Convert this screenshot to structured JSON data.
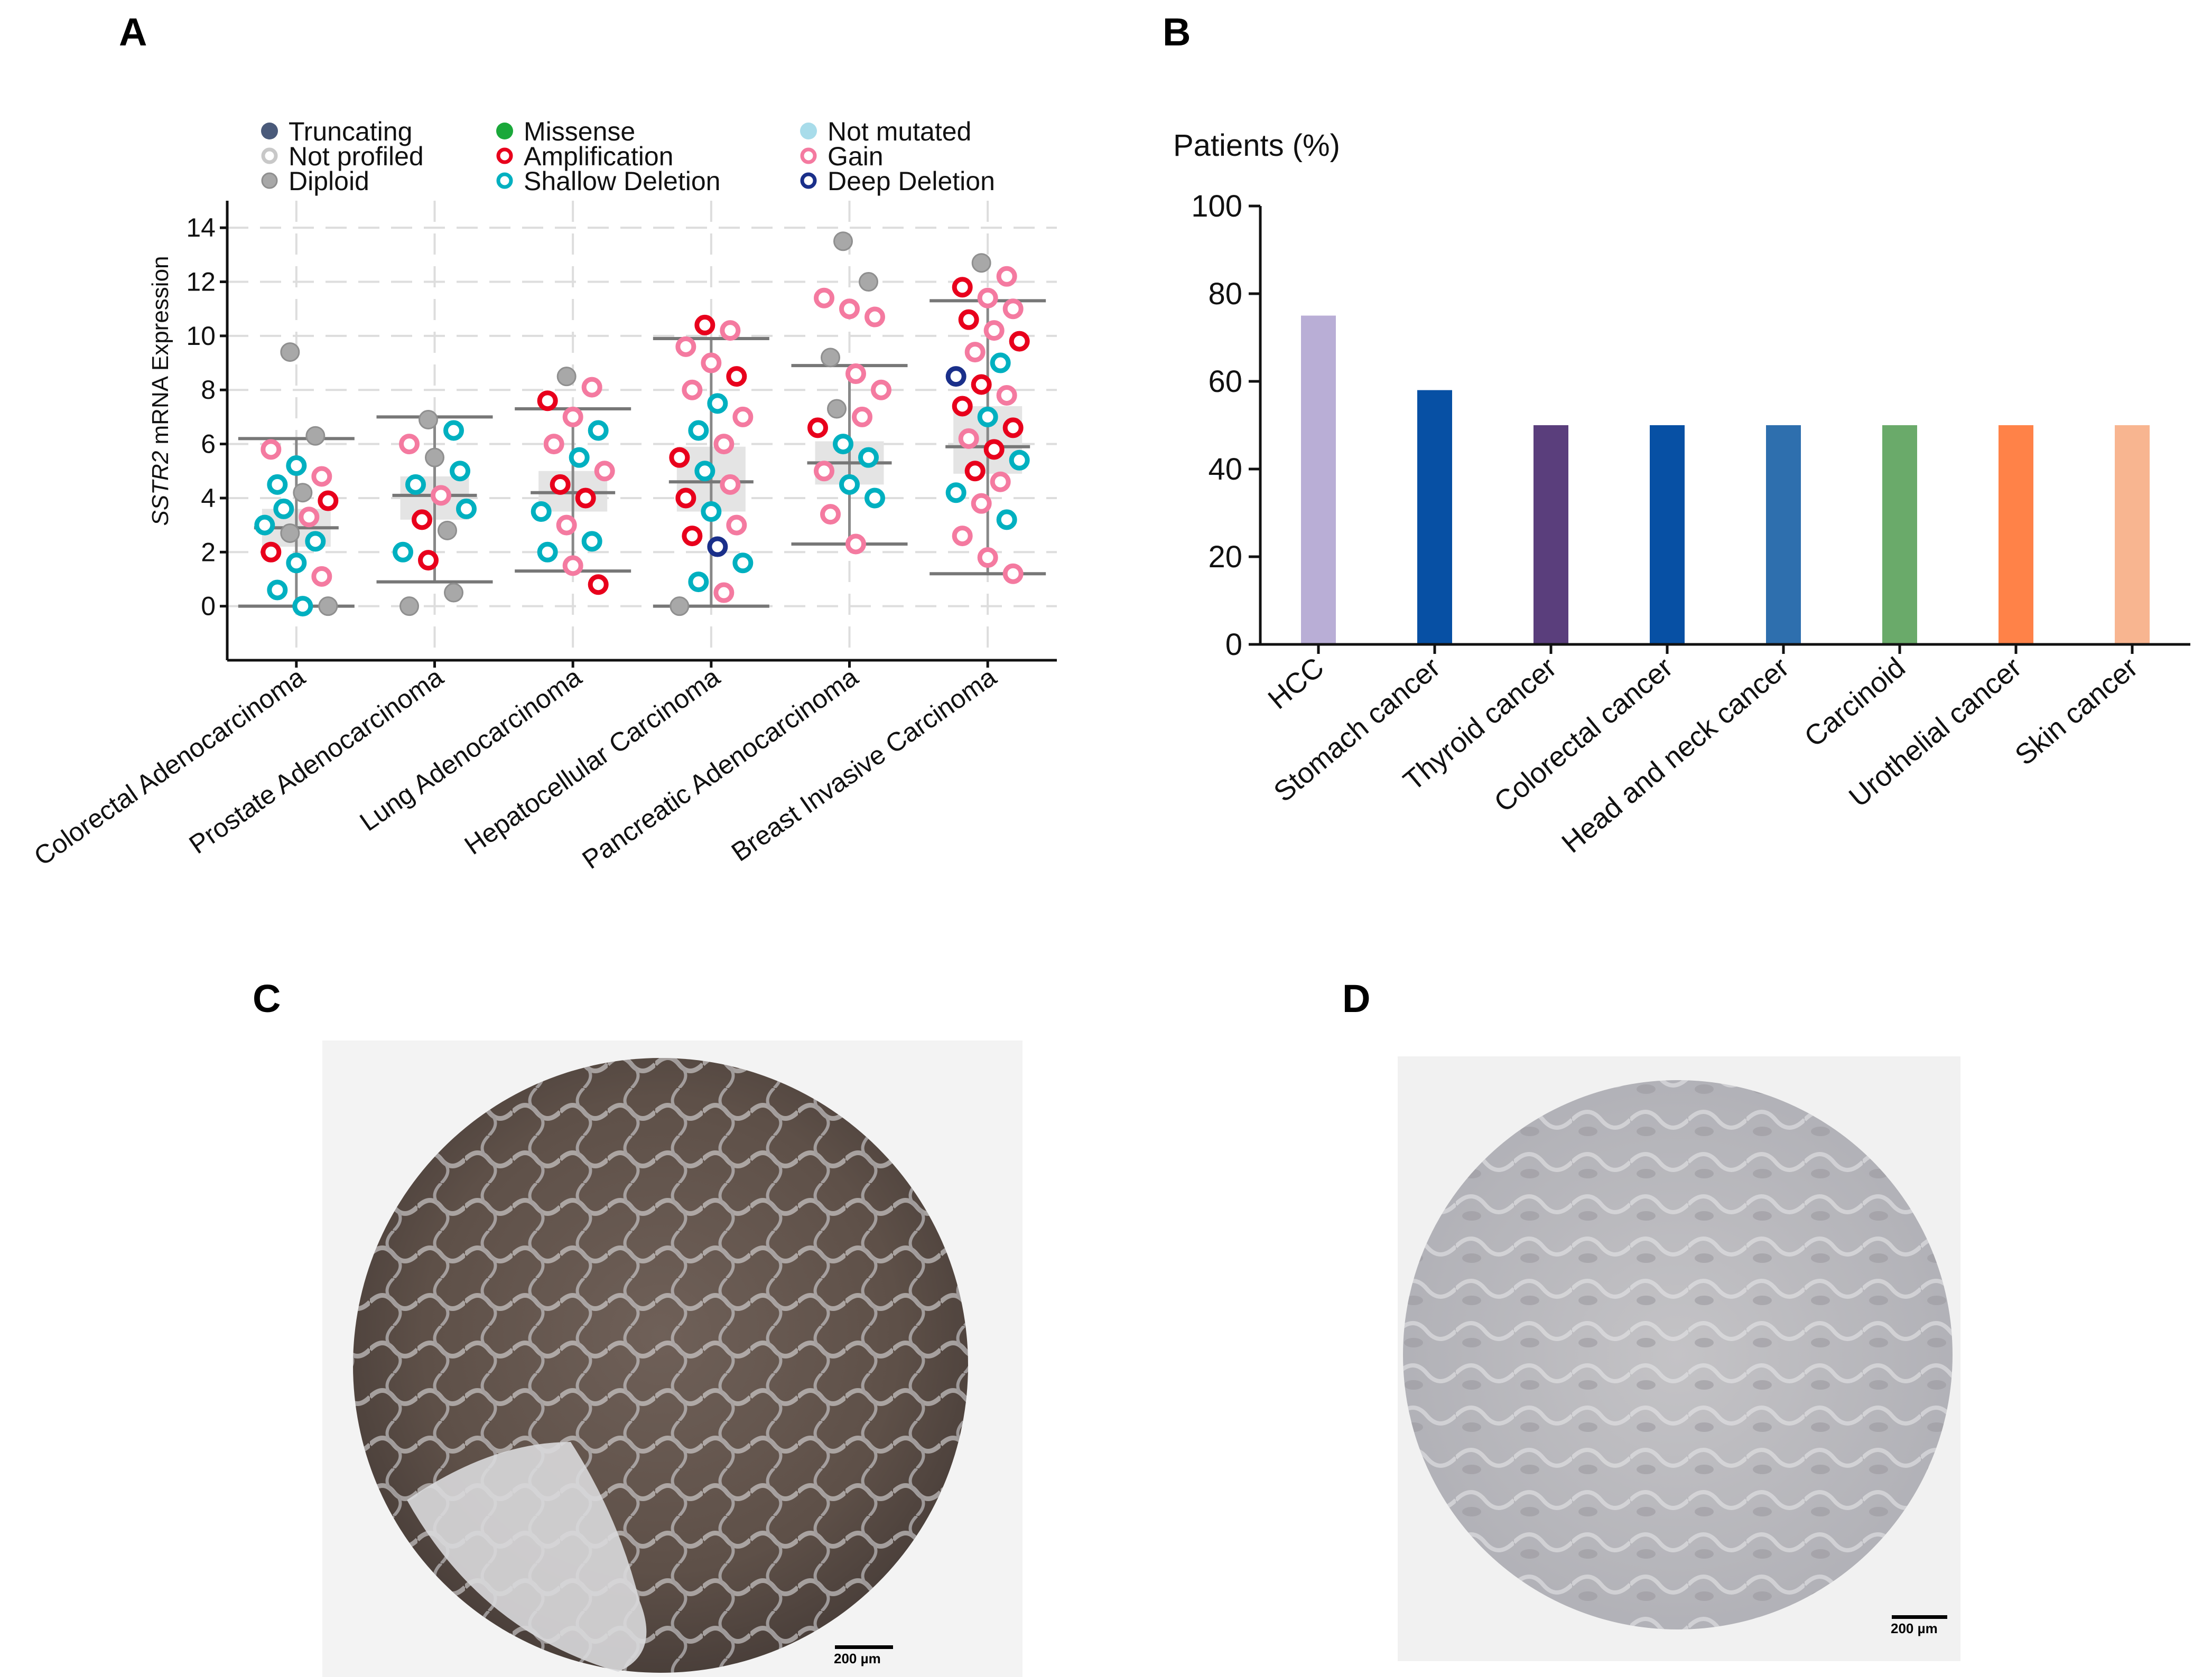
{
  "panel_labels": {
    "a": "A",
    "b": "B",
    "c": "C",
    "d": "D"
  },
  "chart_data": [
    {
      "type": "scatter",
      "panel": "A",
      "title": "",
      "xlabel": "",
      "ylabel_italic": "SSTR2",
      "ylabel_rest": " mRNA Expression",
      "ylim": [
        -2,
        15
      ],
      "yticks": [
        0,
        2,
        4,
        6,
        8,
        10,
        12,
        14
      ],
      "grid": true,
      "legend": [
        {
          "label": "Truncating",
          "color": "#4a5a7a",
          "style": "filled"
        },
        {
          "label": "Not profiled",
          "color": "#c8c8c8",
          "style": "ring"
        },
        {
          "label": "Diploid",
          "color": "#a8a8a8",
          "style": "filled-ring"
        },
        {
          "label": "Missense",
          "color": "#1aa83a",
          "style": "filled"
        },
        {
          "label": "Amplification",
          "color": "#e8001c",
          "style": "ring"
        },
        {
          "label": "Shallow Deletion",
          "color": "#00b0c0",
          "style": "ring"
        },
        {
          "label": "Not mutated",
          "color": "#a8dcea",
          "style": "filled"
        },
        {
          "label": "Gain",
          "color": "#f47aa0",
          "style": "ring"
        },
        {
          "label": "Deep Deletion",
          "color": "#1a2f8a",
          "style": "ring"
        }
      ],
      "categories": [
        "Colorectal Adenocarcinoma",
        "Prostate Adenocarcinoma",
        "Lung Adenocarcinoma",
        "Hepatocellular Carcinoma",
        "Pancreatic Adenocarcinoma",
        "Breast Invasive Carcinoma"
      ],
      "boxes": [
        {
          "min": 0.0,
          "q1": 2.2,
          "median": 2.9,
          "q3": 3.6,
          "max": 6.2
        },
        {
          "min": 0.9,
          "q1": 3.2,
          "median": 4.1,
          "q3": 4.8,
          "max": 7.0
        },
        {
          "min": 1.3,
          "q1": 3.5,
          "median": 4.2,
          "q3": 5.0,
          "max": 7.3
        },
        {
          "min": 0.0,
          "q1": 3.5,
          "median": 4.6,
          "q3": 5.9,
          "max": 9.9
        },
        {
          "min": 2.3,
          "q1": 4.5,
          "median": 5.3,
          "q3": 6.1,
          "max": 8.9
        },
        {
          "min": 1.2,
          "q1": 4.9,
          "median": 5.9,
          "q3": 7.4,
          "max": 11.3
        }
      ],
      "points": [
        {
          "cat": 0,
          "y": 9.4,
          "type": "Diploid"
        },
        {
          "cat": 0,
          "y": 6.3,
          "type": "Diploid"
        },
        {
          "cat": 0,
          "y": 5.8,
          "type": "Gain"
        },
        {
          "cat": 0,
          "y": 5.2,
          "type": "Shallow Deletion"
        },
        {
          "cat": 0,
          "y": 4.8,
          "type": "Gain"
        },
        {
          "cat": 0,
          "y": 4.5,
          "type": "Shallow Deletion"
        },
        {
          "cat": 0,
          "y": 4.2,
          "type": "Diploid"
        },
        {
          "cat": 0,
          "y": 3.9,
          "type": "Amplification"
        },
        {
          "cat": 0,
          "y": 3.6,
          "type": "Shallow Deletion"
        },
        {
          "cat": 0,
          "y": 3.3,
          "type": "Gain"
        },
        {
          "cat": 0,
          "y": 3.0,
          "type": "Shallow Deletion"
        },
        {
          "cat": 0,
          "y": 2.7,
          "type": "Diploid"
        },
        {
          "cat": 0,
          "y": 2.4,
          "type": "Shallow Deletion"
        },
        {
          "cat": 0,
          "y": 2.0,
          "type": "Amplification"
        },
        {
          "cat": 0,
          "y": 1.6,
          "type": "Shallow Deletion"
        },
        {
          "cat": 0,
          "y": 1.1,
          "type": "Gain"
        },
        {
          "cat": 0,
          "y": 0.6,
          "type": "Shallow Deletion"
        },
        {
          "cat": 0,
          "y": 0.0,
          "type": "Shallow Deletion"
        },
        {
          "cat": 0,
          "y": 0.0,
          "type": "Diploid"
        },
        {
          "cat": 1,
          "y": 6.9,
          "type": "Diploid"
        },
        {
          "cat": 1,
          "y": 6.5,
          "type": "Shallow Deletion"
        },
        {
          "cat": 1,
          "y": 6.0,
          "type": "Gain"
        },
        {
          "cat": 1,
          "y": 5.5,
          "type": "Diploid"
        },
        {
          "cat": 1,
          "y": 5.0,
          "type": "Shallow Deletion"
        },
        {
          "cat": 1,
          "y": 4.5,
          "type": "Shallow Deletion"
        },
        {
          "cat": 1,
          "y": 4.1,
          "type": "Gain"
        },
        {
          "cat": 1,
          "y": 3.6,
          "type": "Shallow Deletion"
        },
        {
          "cat": 1,
          "y": 3.2,
          "type": "Amplification"
        },
        {
          "cat": 1,
          "y": 2.8,
          "type": "Diploid"
        },
        {
          "cat": 1,
          "y": 2.0,
          "type": "Shallow Deletion"
        },
        {
          "cat": 1,
          "y": 1.7,
          "type": "Amplification"
        },
        {
          "cat": 1,
          "y": 0.5,
          "type": "Diploid"
        },
        {
          "cat": 1,
          "y": 0.0,
          "type": "Diploid"
        },
        {
          "cat": 2,
          "y": 8.5,
          "type": "Diploid"
        },
        {
          "cat": 2,
          "y": 8.1,
          "type": "Gain"
        },
        {
          "cat": 2,
          "y": 7.6,
          "type": "Amplification"
        },
        {
          "cat": 2,
          "y": 7.0,
          "type": "Gain"
        },
        {
          "cat": 2,
          "y": 6.5,
          "type": "Shallow Deletion"
        },
        {
          "cat": 2,
          "y": 6.0,
          "type": "Gain"
        },
        {
          "cat": 2,
          "y": 5.5,
          "type": "Shallow Deletion"
        },
        {
          "cat": 2,
          "y": 5.0,
          "type": "Gain"
        },
        {
          "cat": 2,
          "y": 4.5,
          "type": "Amplification"
        },
        {
          "cat": 2,
          "y": 4.0,
          "type": "Amplification"
        },
        {
          "cat": 2,
          "y": 3.5,
          "type": "Shallow Deletion"
        },
        {
          "cat": 2,
          "y": 3.0,
          "type": "Gain"
        },
        {
          "cat": 2,
          "y": 2.4,
          "type": "Shallow Deletion"
        },
        {
          "cat": 2,
          "y": 2.0,
          "type": "Shallow Deletion"
        },
        {
          "cat": 2,
          "y": 1.5,
          "type": "Gain"
        },
        {
          "cat": 2,
          "y": 0.8,
          "type": "Amplification"
        },
        {
          "cat": 3,
          "y": 10.4,
          "type": "Amplification"
        },
        {
          "cat": 3,
          "y": 10.2,
          "type": "Gain"
        },
        {
          "cat": 3,
          "y": 9.6,
          "type": "Gain"
        },
        {
          "cat": 3,
          "y": 9.0,
          "type": "Gain"
        },
        {
          "cat": 3,
          "y": 8.5,
          "type": "Amplification"
        },
        {
          "cat": 3,
          "y": 8.0,
          "type": "Gain"
        },
        {
          "cat": 3,
          "y": 7.5,
          "type": "Shallow Deletion"
        },
        {
          "cat": 3,
          "y": 7.0,
          "type": "Gain"
        },
        {
          "cat": 3,
          "y": 6.5,
          "type": "Shallow Deletion"
        },
        {
          "cat": 3,
          "y": 6.0,
          "type": "Gain"
        },
        {
          "cat": 3,
          "y": 5.5,
          "type": "Amplification"
        },
        {
          "cat": 3,
          "y": 5.0,
          "type": "Shallow Deletion"
        },
        {
          "cat": 3,
          "y": 4.5,
          "type": "Gain"
        },
        {
          "cat": 3,
          "y": 4.0,
          "type": "Amplification"
        },
        {
          "cat": 3,
          "y": 3.5,
          "type": "Shallow Deletion"
        },
        {
          "cat": 3,
          "y": 3.0,
          "type": "Gain"
        },
        {
          "cat": 3,
          "y": 2.6,
          "type": "Amplification"
        },
        {
          "cat": 3,
          "y": 2.2,
          "type": "Deep Deletion"
        },
        {
          "cat": 3,
          "y": 1.6,
          "type": "Shallow Deletion"
        },
        {
          "cat": 3,
          "y": 0.9,
          "type": "Shallow Deletion"
        },
        {
          "cat": 3,
          "y": 0.5,
          "type": "Gain"
        },
        {
          "cat": 3,
          "y": 0.0,
          "type": "Diploid"
        },
        {
          "cat": 4,
          "y": 13.5,
          "type": "Diploid"
        },
        {
          "cat": 4,
          "y": 12.0,
          "type": "Diploid"
        },
        {
          "cat": 4,
          "y": 11.4,
          "type": "Gain"
        },
        {
          "cat": 4,
          "y": 11.0,
          "type": "Gain"
        },
        {
          "cat": 4,
          "y": 10.7,
          "type": "Gain"
        },
        {
          "cat": 4,
          "y": 9.2,
          "type": "Diploid"
        },
        {
          "cat": 4,
          "y": 8.6,
          "type": "Gain"
        },
        {
          "cat": 4,
          "y": 8.0,
          "type": "Gain"
        },
        {
          "cat": 4,
          "y": 7.3,
          "type": "Diploid"
        },
        {
          "cat": 4,
          "y": 7.0,
          "type": "Gain"
        },
        {
          "cat": 4,
          "y": 6.6,
          "type": "Amplification"
        },
        {
          "cat": 4,
          "y": 6.0,
          "type": "Shallow Deletion"
        },
        {
          "cat": 4,
          "y": 5.5,
          "type": "Shallow Deletion"
        },
        {
          "cat": 4,
          "y": 5.0,
          "type": "Gain"
        },
        {
          "cat": 4,
          "y": 4.5,
          "type": "Shallow Deletion"
        },
        {
          "cat": 4,
          "y": 4.0,
          "type": "Shallow Deletion"
        },
        {
          "cat": 4,
          "y": 3.4,
          "type": "Gain"
        },
        {
          "cat": 4,
          "y": 2.3,
          "type": "Gain"
        },
        {
          "cat": 5,
          "y": 12.7,
          "type": "Diploid"
        },
        {
          "cat": 5,
          "y": 12.2,
          "type": "Gain"
        },
        {
          "cat": 5,
          "y": 11.8,
          "type": "Amplification"
        },
        {
          "cat": 5,
          "y": 11.4,
          "type": "Gain"
        },
        {
          "cat": 5,
          "y": 11.0,
          "type": "Gain"
        },
        {
          "cat": 5,
          "y": 10.6,
          "type": "Amplification"
        },
        {
          "cat": 5,
          "y": 10.2,
          "type": "Gain"
        },
        {
          "cat": 5,
          "y": 9.8,
          "type": "Amplification"
        },
        {
          "cat": 5,
          "y": 9.4,
          "type": "Gain"
        },
        {
          "cat": 5,
          "y": 9.0,
          "type": "Shallow Deletion"
        },
        {
          "cat": 5,
          "y": 8.5,
          "type": "Deep Deletion"
        },
        {
          "cat": 5,
          "y": 8.2,
          "type": "Amplification"
        },
        {
          "cat": 5,
          "y": 7.8,
          "type": "Gain"
        },
        {
          "cat": 5,
          "y": 7.4,
          "type": "Amplification"
        },
        {
          "cat": 5,
          "y": 7.0,
          "type": "Shallow Deletion"
        },
        {
          "cat": 5,
          "y": 6.6,
          "type": "Amplification"
        },
        {
          "cat": 5,
          "y": 6.2,
          "type": "Gain"
        },
        {
          "cat": 5,
          "y": 5.8,
          "type": "Amplification"
        },
        {
          "cat": 5,
          "y": 5.4,
          "type": "Shallow Deletion"
        },
        {
          "cat": 5,
          "y": 5.0,
          "type": "Amplification"
        },
        {
          "cat": 5,
          "y": 4.6,
          "type": "Gain"
        },
        {
          "cat": 5,
          "y": 4.2,
          "type": "Shallow Deletion"
        },
        {
          "cat": 5,
          "y": 3.8,
          "type": "Gain"
        },
        {
          "cat": 5,
          "y": 3.2,
          "type": "Shallow Deletion"
        },
        {
          "cat": 5,
          "y": 2.6,
          "type": "Gain"
        },
        {
          "cat": 5,
          "y": 1.8,
          "type": "Gain"
        },
        {
          "cat": 5,
          "y": 1.2,
          "type": "Gain"
        }
      ]
    },
    {
      "type": "bar",
      "panel": "B",
      "title": "Patients (%)",
      "xlabel": "",
      "ylabel": "",
      "ylim": [
        0,
        100
      ],
      "yticks": [
        0,
        20,
        40,
        60,
        80,
        100
      ],
      "categories": [
        "HCC",
        "Stomach cancer",
        "Thyroid cancer",
        "Colorectal cancer",
        "Head and neck cancer",
        "Carcinoid",
        "Urothelial cancer",
        "Skin cancer"
      ],
      "values": [
        75,
        58,
        50,
        50,
        50,
        50,
        50,
        50
      ],
      "colors": [
        "#b9aed6",
        "#0750a4",
        "#5a3e7c",
        "#0750a4",
        "#2e6fae",
        "#6aaa6a",
        "#ff8248",
        "#f8b590"
      ]
    }
  ],
  "panel_c": {
    "scale_label": "200 µm"
  },
  "panel_d": {
    "scale_label": "200 µm"
  }
}
